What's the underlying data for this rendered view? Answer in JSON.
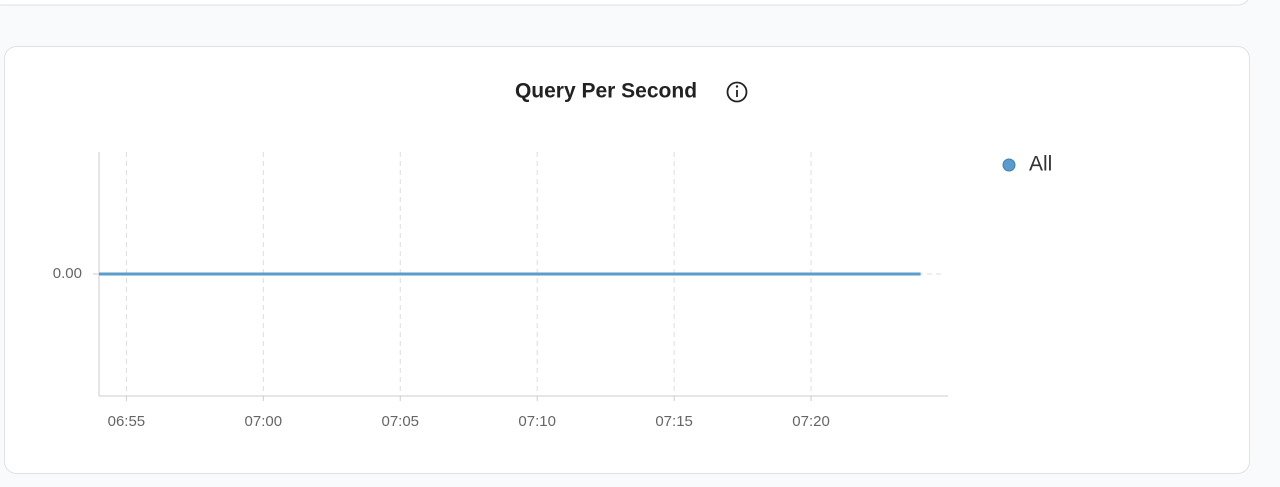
{
  "chart_data": {
    "type": "line",
    "title": "Query Per Second",
    "x": [
      "06:54",
      "06:55",
      "07:00",
      "07:05",
      "07:10",
      "07:15",
      "07:20",
      "07:24"
    ],
    "series": [
      {
        "name": "All",
        "color": "#5a9ccb",
        "values": [
          0,
          0,
          0,
          0,
          0,
          0,
          0,
          0
        ]
      }
    ],
    "xlim": [
      "06:54",
      "07:25"
    ],
    "xticks": [
      "06:55",
      "07:00",
      "07:05",
      "07:10",
      "07:15",
      "07:20"
    ],
    "ylim": [
      -1,
      1
    ],
    "yticks": [
      {
        "value": 0,
        "label": "0.00"
      }
    ],
    "grid": true,
    "legend": "right"
  }
}
